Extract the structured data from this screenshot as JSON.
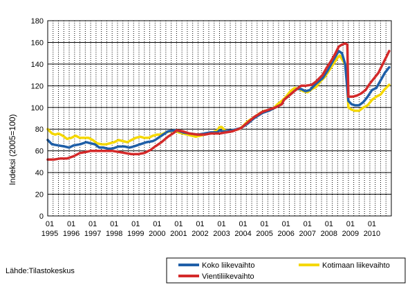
{
  "chart_data": {
    "type": "line",
    "ylabel": "Indeksi (2005=100)",
    "ylim": [
      0,
      180
    ],
    "yticks": [
      0,
      20,
      40,
      60,
      80,
      100,
      120,
      140,
      160,
      180
    ],
    "xlim": [
      1995.0,
      2011.0
    ],
    "x_month_label": "01",
    "x_years": [
      "1995",
      "1996",
      "1997",
      "1998",
      "1999",
      "2000",
      "2001",
      "2002",
      "2003",
      "2004",
      "2005",
      "2006",
      "2007",
      "2008",
      "2009",
      "2010"
    ],
    "grid": true,
    "legend_position": "bottom-right",
    "series": [
      {
        "name": "Koko liikevaihto",
        "color": "#1f5fa8",
        "points": [
          [
            1995.0,
            70
          ],
          [
            1995.2,
            66
          ],
          [
            1995.5,
            65
          ],
          [
            1995.8,
            64
          ],
          [
            1996.0,
            63
          ],
          [
            1996.2,
            65
          ],
          [
            1996.5,
            66
          ],
          [
            1996.8,
            68
          ],
          [
            1997.0,
            67
          ],
          [
            1997.2,
            66
          ],
          [
            1997.4,
            63
          ],
          [
            1997.6,
            63
          ],
          [
            1997.8,
            62
          ],
          [
            1998.0,
            62
          ],
          [
            1998.3,
            64
          ],
          [
            1998.6,
            64
          ],
          [
            1998.8,
            63
          ],
          [
            1999.0,
            64
          ],
          [
            1999.3,
            66
          ],
          [
            1999.6,
            68
          ],
          [
            1999.9,
            69
          ],
          [
            2000.0,
            70
          ],
          [
            2000.3,
            74
          ],
          [
            2000.6,
            78
          ],
          [
            2000.9,
            79
          ],
          [
            2001.0,
            79
          ],
          [
            2001.3,
            77
          ],
          [
            2001.6,
            76
          ],
          [
            2002.0,
            75
          ],
          [
            2002.3,
            76
          ],
          [
            2002.6,
            77
          ],
          [
            2002.9,
            77
          ],
          [
            2003.0,
            79
          ],
          [
            2003.15,
            78
          ],
          [
            2003.3,
            78
          ],
          [
            2003.6,
            79
          ],
          [
            2004.0,
            81
          ],
          [
            2004.3,
            85
          ],
          [
            2004.6,
            90
          ],
          [
            2005.0,
            95
          ],
          [
            2005.3,
            97
          ],
          [
            2005.6,
            100
          ],
          [
            2005.9,
            103
          ],
          [
            2006.0,
            107
          ],
          [
            2006.3,
            112
          ],
          [
            2006.6,
            117
          ],
          [
            2006.8,
            117
          ],
          [
            2007.0,
            115
          ],
          [
            2007.2,
            116
          ],
          [
            2007.5,
            122
          ],
          [
            2007.8,
            127
          ],
          [
            2008.0,
            133
          ],
          [
            2008.2,
            140
          ],
          [
            2008.4,
            147
          ],
          [
            2008.55,
            152
          ],
          [
            2008.7,
            150
          ],
          [
            2008.85,
            140
          ],
          [
            2009.0,
            106
          ],
          [
            2009.15,
            103
          ],
          [
            2009.3,
            102
          ],
          [
            2009.5,
            102
          ],
          [
            2009.7,
            105
          ],
          [
            2009.9,
            110
          ],
          [
            2010.1,
            116
          ],
          [
            2010.3,
            118
          ],
          [
            2010.5,
            125
          ],
          [
            2010.7,
            132
          ],
          [
            2010.9,
            137
          ]
        ]
      },
      {
        "name": "Kotimaan liikevaihto",
        "color": "#f5d800",
        "points": [
          [
            1995.0,
            80
          ],
          [
            1995.2,
            76
          ],
          [
            1995.35,
            75
          ],
          [
            1995.5,
            76
          ],
          [
            1995.7,
            74
          ],
          [
            1995.9,
            71
          ],
          [
            1996.1,
            72
          ],
          [
            1996.3,
            74
          ],
          [
            1996.5,
            72
          ],
          [
            1996.7,
            72
          ],
          [
            1996.9,
            72
          ],
          [
            1997.1,
            70
          ],
          [
            1997.3,
            67
          ],
          [
            1997.5,
            66
          ],
          [
            1997.7,
            66
          ],
          [
            1997.9,
            67
          ],
          [
            1998.1,
            68
          ],
          [
            1998.3,
            70
          ],
          [
            1998.5,
            69
          ],
          [
            1998.7,
            68
          ],
          [
            1998.9,
            70
          ],
          [
            1999.1,
            72
          ],
          [
            1999.3,
            73
          ],
          [
            1999.5,
            72
          ],
          [
            1999.7,
            72
          ],
          [
            1999.9,
            74
          ],
          [
            2000.1,
            75
          ],
          [
            2000.3,
            75
          ],
          [
            2000.5,
            77
          ],
          [
            2000.7,
            78
          ],
          [
            2000.9,
            79
          ],
          [
            2001.1,
            77
          ],
          [
            2001.3,
            76
          ],
          [
            2001.5,
            75
          ],
          [
            2001.7,
            74
          ],
          [
            2001.9,
            73
          ],
          [
            2002.1,
            74
          ],
          [
            2002.3,
            75
          ],
          [
            2002.5,
            76
          ],
          [
            2002.7,
            77
          ],
          [
            2002.9,
            79
          ],
          [
            2003.0,
            82
          ],
          [
            2003.1,
            82
          ],
          [
            2003.3,
            78
          ],
          [
            2003.5,
            78
          ],
          [
            2003.7,
            79
          ],
          [
            2003.9,
            80
          ],
          [
            2004.1,
            83
          ],
          [
            2004.3,
            87
          ],
          [
            2004.6,
            91
          ],
          [
            2004.9,
            95
          ],
          [
            2005.1,
            97
          ],
          [
            2005.3,
            97
          ],
          [
            2005.5,
            99
          ],
          [
            2005.7,
            103
          ],
          [
            2005.9,
            106
          ],
          [
            2006.1,
            110
          ],
          [
            2006.3,
            115
          ],
          [
            2006.5,
            118
          ],
          [
            2006.7,
            117
          ],
          [
            2006.9,
            115
          ],
          [
            2007.1,
            114
          ],
          [
            2007.3,
            117
          ],
          [
            2007.5,
            119
          ],
          [
            2007.7,
            124
          ],
          [
            2007.9,
            128
          ],
          [
            2008.1,
            134
          ],
          [
            2008.3,
            140
          ],
          [
            2008.5,
            146
          ],
          [
            2008.6,
            148
          ],
          [
            2008.75,
            143
          ],
          [
            2008.9,
            138
          ],
          [
            2009.0,
            100
          ],
          [
            2009.15,
            98
          ],
          [
            2009.3,
            97
          ],
          [
            2009.5,
            97
          ],
          [
            2009.7,
            100
          ],
          [
            2009.9,
            102
          ],
          [
            2010.1,
            107
          ],
          [
            2010.3,
            110
          ],
          [
            2010.5,
            112
          ],
          [
            2010.7,
            117
          ],
          [
            2010.9,
            121
          ]
        ]
      },
      {
        "name": "Vientiliikevaihto",
        "color": "#d42a2a",
        "points": [
          [
            1995.0,
            52
          ],
          [
            1995.3,
            52
          ],
          [
            1995.6,
            53
          ],
          [
            1995.9,
            53
          ],
          [
            1996.2,
            55
          ],
          [
            1996.5,
            58
          ],
          [
            1996.8,
            59
          ],
          [
            1997.0,
            60
          ],
          [
            1997.3,
            60
          ],
          [
            1997.6,
            60
          ],
          [
            1998.0,
            60
          ],
          [
            1998.3,
            59
          ],
          [
            1998.6,
            58
          ],
          [
            1998.9,
            57
          ],
          [
            1999.2,
            57
          ],
          [
            1999.5,
            58
          ],
          [
            1999.8,
            61
          ],
          [
            2000.0,
            64
          ],
          [
            2000.3,
            68
          ],
          [
            2000.6,
            73
          ],
          [
            2000.9,
            77
          ],
          [
            2001.0,
            79
          ],
          [
            2001.3,
            78
          ],
          [
            2001.6,
            76
          ],
          [
            2002.0,
            75
          ],
          [
            2002.3,
            75
          ],
          [
            2002.6,
            76
          ],
          [
            2003.0,
            76
          ],
          [
            2003.3,
            77
          ],
          [
            2003.6,
            78
          ],
          [
            2004.0,
            81
          ],
          [
            2004.3,
            86
          ],
          [
            2004.6,
            91
          ],
          [
            2005.0,
            96
          ],
          [
            2005.3,
            98
          ],
          [
            2005.6,
            100
          ],
          [
            2005.9,
            103
          ],
          [
            2006.0,
            107
          ],
          [
            2006.3,
            112
          ],
          [
            2006.6,
            117
          ],
          [
            2006.8,
            120
          ],
          [
            2007.0,
            120
          ],
          [
            2007.3,
            121
          ],
          [
            2007.5,
            124
          ],
          [
            2007.8,
            130
          ],
          [
            2008.0,
            137
          ],
          [
            2008.2,
            143
          ],
          [
            2008.4,
            150
          ],
          [
            2008.55,
            156
          ],
          [
            2008.7,
            158
          ],
          [
            2008.85,
            159
          ],
          [
            2008.95,
            158
          ],
          [
            2009.0,
            110
          ],
          [
            2009.2,
            110
          ],
          [
            2009.4,
            111
          ],
          [
            2009.6,
            113
          ],
          [
            2009.8,
            116
          ],
          [
            2010.0,
            122
          ],
          [
            2010.2,
            127
          ],
          [
            2010.4,
            132
          ],
          [
            2010.6,
            140
          ],
          [
            2010.8,
            148
          ],
          [
            2010.9,
            152
          ]
        ]
      }
    ]
  },
  "source": "Lähde:Tilastokeskus"
}
